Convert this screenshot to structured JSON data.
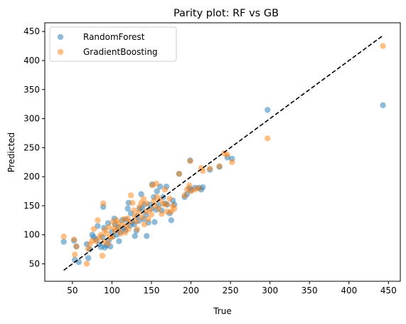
{
  "chart_data": {
    "type": "scatter",
    "title": "Parity plot: RF vs GB",
    "xlabel": "True",
    "ylabel": "Predicted",
    "xlim": [
      15,
      465
    ],
    "ylim": [
      20,
      465
    ],
    "xticks": [
      50,
      100,
      150,
      200,
      250,
      300,
      350,
      400,
      450
    ],
    "yticks": [
      50,
      100,
      150,
      200,
      250,
      300,
      350,
      400,
      450
    ],
    "grid": false,
    "legend_position": "top-left",
    "reference_line": {
      "style": "dashed",
      "color": "#000000",
      "from": [
        39,
        39
      ],
      "to": [
        443,
        443
      ]
    },
    "series": [
      {
        "name": "RandomForest",
        "color": "#1f77b4",
        "points": [
          [
            39,
            88
          ],
          [
            52,
            90
          ],
          [
            53,
            57
          ],
          [
            55,
            80
          ],
          [
            58,
            53
          ],
          [
            68,
            84
          ],
          [
            70,
            60
          ],
          [
            72,
            75
          ],
          [
            75,
            100
          ],
          [
            77,
            96
          ],
          [
            80,
            92
          ],
          [
            82,
            115
          ],
          [
            84,
            84
          ],
          [
            86,
            79
          ],
          [
            88,
            96
          ],
          [
            89,
            148
          ],
          [
            90,
            112
          ],
          [
            91,
            78
          ],
          [
            93,
            82
          ],
          [
            95,
            120
          ],
          [
            96,
            90
          ],
          [
            98,
            80
          ],
          [
            100,
            105
          ],
          [
            101,
            97
          ],
          [
            103,
            128
          ],
          [
            104,
            118
          ],
          [
            106,
            100
          ],
          [
            108,
            113
          ],
          [
            109,
            89
          ],
          [
            111,
            105
          ],
          [
            113,
            125
          ],
          [
            115,
            112
          ],
          [
            117,
            108
          ],
          [
            118,
            126
          ],
          [
            120,
            145
          ],
          [
            121,
            155
          ],
          [
            123,
            116
          ],
          [
            124,
            137
          ],
          [
            126,
            122
          ],
          [
            128,
            118
          ],
          [
            129,
            98
          ],
          [
            131,
            107
          ],
          [
            132,
            132
          ],
          [
            134,
            124
          ],
          [
            135,
            145
          ],
          [
            137,
            170
          ],
          [
            138,
            145
          ],
          [
            140,
            127
          ],
          [
            141,
            152
          ],
          [
            143,
            135
          ],
          [
            144,
            98
          ],
          [
            146,
            121
          ],
          [
            148,
            152
          ],
          [
            150,
            145
          ],
          [
            151,
            187
          ],
          [
            153,
            165
          ],
          [
            154,
            122
          ],
          [
            156,
            143
          ],
          [
            157,
            175
          ],
          [
            159,
            151
          ],
          [
            161,
            183
          ],
          [
            163,
            142
          ],
          [
            165,
            165
          ],
          [
            167,
            154
          ],
          [
            169,
            183
          ],
          [
            170,
            152
          ],
          [
            173,
            137
          ],
          [
            175,
            125
          ],
          [
            177,
            159
          ],
          [
            179,
            152
          ],
          [
            185,
            205
          ],
          [
            192,
            165
          ],
          [
            195,
            170
          ],
          [
            198,
            180
          ],
          [
            199,
            228
          ],
          [
            200,
            177
          ],
          [
            205,
            181
          ],
          [
            210,
            181
          ],
          [
            213,
            178
          ],
          [
            215,
            182
          ],
          [
            224,
            212
          ],
          [
            236,
            217
          ],
          [
            246,
            233
          ],
          [
            252,
            231
          ],
          [
            297,
            315
          ],
          [
            443,
            323
          ]
        ]
      },
      {
        "name": "GradientBoosting",
        "color": "#ff7f0e",
        "points": [
          [
            39,
            97
          ],
          [
            52,
            92
          ],
          [
            53,
            66
          ],
          [
            55,
            80
          ],
          [
            68,
            50
          ],
          [
            70,
            76
          ],
          [
            72,
            84
          ],
          [
            75,
            90
          ],
          [
            77,
            110
          ],
          [
            80,
            89
          ],
          [
            82,
            125
          ],
          [
            84,
            95
          ],
          [
            86,
            100
          ],
          [
            88,
            64
          ],
          [
            89,
            154
          ],
          [
            90,
            88
          ],
          [
            91,
            108
          ],
          [
            93,
            102
          ],
          [
            95,
            85
          ],
          [
            96,
            113
          ],
          [
            98,
            95
          ],
          [
            100,
            97
          ],
          [
            101,
            122
          ],
          [
            103,
            112
          ],
          [
            104,
            107
          ],
          [
            106,
            125
          ],
          [
            108,
            120
          ],
          [
            109,
            110
          ],
          [
            111,
            102
          ],
          [
            113,
            117
          ],
          [
            115,
            127
          ],
          [
            117,
            104
          ],
          [
            118,
            115
          ],
          [
            120,
            128
          ],
          [
            121,
            110
          ],
          [
            123,
            122
          ],
          [
            124,
            168
          ],
          [
            126,
            155
          ],
          [
            128,
            142
          ],
          [
            129,
            132
          ],
          [
            131,
            123
          ],
          [
            132,
            110
          ],
          [
            134,
            138
          ],
          [
            135,
            148
          ],
          [
            137,
            155
          ],
          [
            138,
            130
          ],
          [
            140,
            162
          ],
          [
            141,
            118
          ],
          [
            143,
            140
          ],
          [
            144,
            154
          ],
          [
            146,
            127
          ],
          [
            148,
            143
          ],
          [
            150,
            135
          ],
          [
            151,
            185
          ],
          [
            153,
            158
          ],
          [
            154,
            150
          ],
          [
            156,
            188
          ],
          [
            157,
            165
          ],
          [
            159,
            145
          ],
          [
            161,
            160
          ],
          [
            163,
            136
          ],
          [
            165,
            153
          ],
          [
            167,
            178
          ],
          [
            169,
            152
          ],
          [
            170,
            140
          ],
          [
            173,
            162
          ],
          [
            175,
            140
          ],
          [
            177,
            150
          ],
          [
            179,
            145
          ],
          [
            185,
            205
          ],
          [
            192,
            168
          ],
          [
            195,
            178
          ],
          [
            198,
            185
          ],
          [
            199,
            227
          ],
          [
            200,
            175
          ],
          [
            205,
            178
          ],
          [
            210,
            180
          ],
          [
            213,
            215
          ],
          [
            215,
            210
          ],
          [
            224,
            214
          ],
          [
            236,
            218
          ],
          [
            242,
            240
          ],
          [
            246,
            238
          ],
          [
            252,
            225
          ],
          [
            297,
            266
          ],
          [
            443,
            425
          ]
        ]
      }
    ]
  }
}
